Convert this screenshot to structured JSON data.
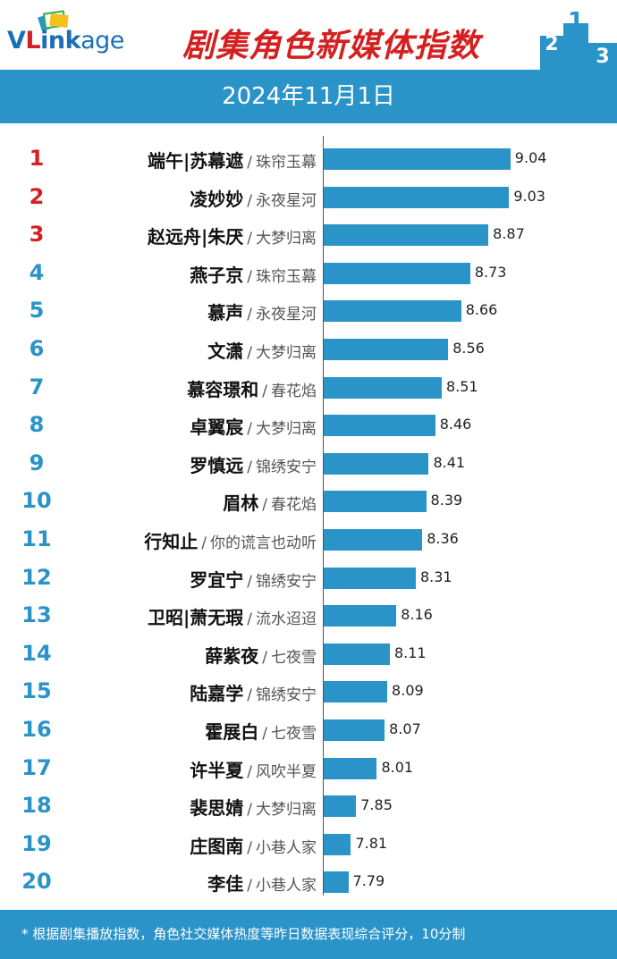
{
  "logo": {
    "v": "V",
    "l": "L",
    "ink": "ink",
    "age": "age"
  },
  "title": "剧集角色新媒体指数",
  "podium": {
    "first": "1",
    "second": "2",
    "third": "3"
  },
  "date": "2024年11月1日",
  "colors": {
    "bar": "#2a93c8",
    "top_rank": "#d42020",
    "rank": "#2a93c8",
    "title": "#d42020"
  },
  "chart_data": {
    "type": "bar",
    "orientation": "horizontal",
    "xlim": [
      7.6,
      9.2
    ],
    "rows": [
      {
        "rank": "1",
        "name": "端午|苏幕遮",
        "show": "珠帘玉幕",
        "value": 9.04,
        "value_label": "9.04"
      },
      {
        "rank": "2",
        "name": "凌妙妙",
        "show": "永夜星河",
        "value": 9.03,
        "value_label": "9.03"
      },
      {
        "rank": "3",
        "name": "赵远舟|朱厌",
        "show": "大梦归离",
        "value": 8.87,
        "value_label": "8.87"
      },
      {
        "rank": "4",
        "name": "燕子京",
        "show": "珠帘玉幕",
        "value": 8.73,
        "value_label": "8.73"
      },
      {
        "rank": "5",
        "name": "慕声",
        "show": "永夜星河",
        "value": 8.66,
        "value_label": "8.66"
      },
      {
        "rank": "6",
        "name": "文潇",
        "show": "大梦归离",
        "value": 8.56,
        "value_label": "8.56"
      },
      {
        "rank": "7",
        "name": "慕容璟和",
        "show": "春花焰",
        "value": 8.51,
        "value_label": "8.51"
      },
      {
        "rank": "8",
        "name": "卓翼宸",
        "show": "大梦归离",
        "value": 8.46,
        "value_label": "8.46"
      },
      {
        "rank": "9",
        "name": "罗慎远",
        "show": "锦绣安宁",
        "value": 8.41,
        "value_label": "8.41"
      },
      {
        "rank": "10",
        "name": "眉林",
        "show": "春花焰",
        "value": 8.39,
        "value_label": "8.39"
      },
      {
        "rank": "11",
        "name": "行知止",
        "show": "你的谎言也动听",
        "value": 8.36,
        "value_label": "8.36"
      },
      {
        "rank": "12",
        "name": "罗宜宁",
        "show": "锦绣安宁",
        "value": 8.31,
        "value_label": "8.31"
      },
      {
        "rank": "13",
        "name": "卫昭|萧无瑕",
        "show": "流水迢迢",
        "value": 8.16,
        "value_label": "8.16"
      },
      {
        "rank": "14",
        "name": "薛紫夜",
        "show": "七夜雪",
        "value": 8.11,
        "value_label": "8.11"
      },
      {
        "rank": "15",
        "name": "陆嘉学",
        "show": "锦绣安宁",
        "value": 8.09,
        "value_label": "8.09"
      },
      {
        "rank": "16",
        "name": "霍展白",
        "show": "七夜雪",
        "value": 8.07,
        "value_label": "8.07"
      },
      {
        "rank": "17",
        "name": "许半夏",
        "show": "风吹半夏",
        "value": 8.01,
        "value_label": "8.01"
      },
      {
        "rank": "18",
        "name": "裴思婧",
        "show": "大梦归离",
        "value": 7.85,
        "value_label": "7.85"
      },
      {
        "rank": "19",
        "name": "庄图南",
        "show": "小巷人家",
        "value": 7.81,
        "value_label": "7.81"
      },
      {
        "rank": "20",
        "name": "李佳",
        "show": "小巷人家",
        "value": 7.79,
        "value_label": "7.79"
      }
    ]
  },
  "footer": "* 根据剧集播放指数，角色社交媒体热度等昨日数据表现综合评分，10分制"
}
